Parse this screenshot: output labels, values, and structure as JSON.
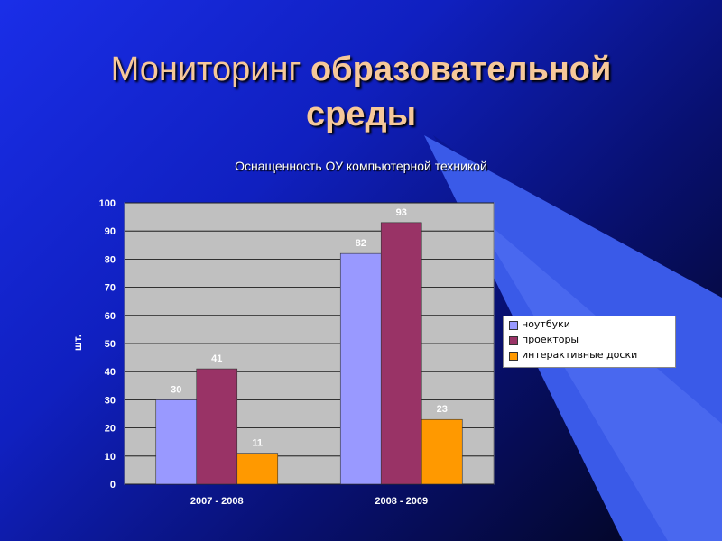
{
  "slide": {
    "title_regular": "Мониторинг",
    "title_bold_line1": "образовательной",
    "title_bold_line2": "среды"
  },
  "colors": {
    "series": [
      "#9999ff",
      "#993366",
      "#ff9900"
    ],
    "plot_background": "#c0c0c0"
  },
  "chart_data": {
    "type": "bar",
    "title": "Оснащенность ОУ компьютерной техникой",
    "xlabel": "",
    "ylabel": "шт.",
    "categories": [
      "2007 - 2008",
      "2008 - 2009"
    ],
    "series": [
      {
        "name": "ноутбуки",
        "values": [
          30,
          82
        ]
      },
      {
        "name": "проекторы",
        "values": [
          41,
          93
        ]
      },
      {
        "name": "интерактивные доски",
        "values": [
          11,
          23
        ]
      }
    ],
    "ylim": [
      0,
      100
    ],
    "yticks": [
      0,
      10,
      20,
      30,
      40,
      50,
      60,
      70,
      80,
      90,
      100
    ],
    "grid": true,
    "legend_position": "right"
  }
}
